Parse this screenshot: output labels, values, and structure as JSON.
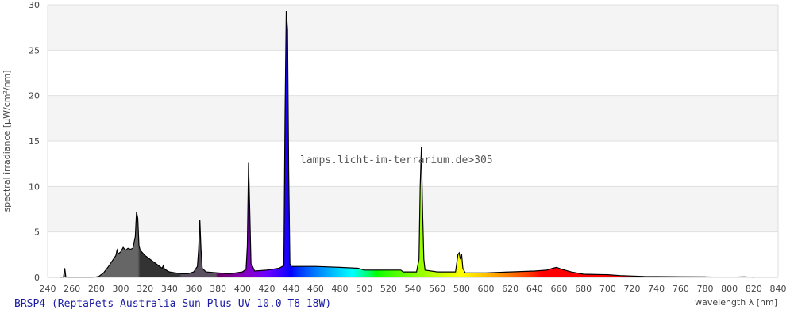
{
  "chart_data": {
    "type": "area",
    "title": "BRSP4 (ReptaPets Australia Sun Plus UV 10.0 T8 18W)",
    "watermark": "lamps.licht-im-terrarium.de>305",
    "xlabel": "wavelength λ [nm]",
    "ylabel": "spectral irradiance [µW/cm²/nm]",
    "xlim": [
      240,
      840
    ],
    "ylim": [
      0,
      30
    ],
    "xticks": [
      240,
      260,
      280,
      300,
      320,
      340,
      360,
      380,
      400,
      420,
      440,
      460,
      480,
      500,
      520,
      540,
      560,
      580,
      600,
      620,
      640,
      660,
      680,
      700,
      720,
      740,
      760,
      780,
      800,
      820,
      840
    ],
    "yticks": [
      0,
      5,
      10,
      15,
      20,
      25,
      30
    ],
    "grid": true,
    "band_colors": [
      "#f4f4f4",
      "#ffffff"
    ],
    "line_color": "#000000",
    "points": [
      [
        250,
        0
      ],
      [
        253,
        0
      ],
      [
        254,
        1.0
      ],
      [
        255,
        0
      ],
      [
        278,
        0
      ],
      [
        282,
        0.1
      ],
      [
        286,
        0.5
      ],
      [
        290,
        1.2
      ],
      [
        294,
        2.0
      ],
      [
        296,
        2.4
      ],
      [
        297,
        3.0
      ],
      [
        298,
        2.6
      ],
      [
        300,
        2.8
      ],
      [
        302,
        3.3
      ],
      [
        304,
        3.0
      ],
      [
        306,
        3.2
      ],
      [
        308,
        3.1
      ],
      [
        310,
        3.2
      ],
      [
        312,
        4.5
      ],
      [
        313,
        7.2
      ],
      [
        314,
        6.5
      ],
      [
        315,
        3.5
      ],
      [
        316,
        3.0
      ],
      [
        320,
        2.4
      ],
      [
        325,
        1.9
      ],
      [
        330,
        1.4
      ],
      [
        334,
        1.0
      ],
      [
        335,
        1.3
      ],
      [
        336,
        0.9
      ],
      [
        340,
        0.6
      ],
      [
        345,
        0.5
      ],
      [
        350,
        0.4
      ],
      [
        355,
        0.4
      ],
      [
        360,
        0.6
      ],
      [
        363,
        1.2
      ],
      [
        364,
        3.0
      ],
      [
        365,
        6.3
      ],
      [
        366,
        3.0
      ],
      [
        367,
        1.0
      ],
      [
        370,
        0.6
      ],
      [
        380,
        0.5
      ],
      [
        390,
        0.4
      ],
      [
        400,
        0.6
      ],
      [
        403,
        0.9
      ],
      [
        404,
        3.5
      ],
      [
        405,
        12.6
      ],
      [
        406,
        7.5
      ],
      [
        407,
        1.5
      ],
      [
        408,
        1.3
      ],
      [
        409,
        1.0
      ],
      [
        410,
        0.7
      ],
      [
        420,
        0.8
      ],
      [
        430,
        1.0
      ],
      [
        434,
        1.3
      ],
      [
        435,
        18
      ],
      [
        436,
        29.3
      ],
      [
        437,
        27.3
      ],
      [
        438,
        11.5
      ],
      [
        439,
        1.5
      ],
      [
        440,
        1.2
      ],
      [
        460,
        1.2
      ],
      [
        480,
        1.1
      ],
      [
        495,
        1.0
      ],
      [
        500,
        0.8
      ],
      [
        530,
        0.8
      ],
      [
        532,
        0.6
      ],
      [
        543,
        0.6
      ],
      [
        545,
        2.0
      ],
      [
        546,
        10
      ],
      [
        547,
        14.3
      ],
      [
        548,
        7
      ],
      [
        549,
        2
      ],
      [
        550,
        0.8
      ],
      [
        560,
        0.6
      ],
      [
        575,
        0.6
      ],
      [
        577,
        2.5
      ],
      [
        578,
        2.7
      ],
      [
        579,
        2.0
      ],
      [
        580,
        2.6
      ],
      [
        581,
        1.0
      ],
      [
        583,
        0.5
      ],
      [
        600,
        0.5
      ],
      [
        620,
        0.6
      ],
      [
        640,
        0.7
      ],
      [
        650,
        0.8
      ],
      [
        655,
        1.0
      ],
      [
        658,
        1.1
      ],
      [
        662,
        0.9
      ],
      [
        670,
        0.6
      ],
      [
        680,
        0.35
      ],
      [
        700,
        0.3
      ],
      [
        710,
        0.2
      ],
      [
        730,
        0.1
      ],
      [
        760,
        0.07
      ],
      [
        780,
        0.05
      ],
      [
        800,
        0.02
      ],
      [
        812,
        0.05
      ],
      [
        820,
        0
      ]
    ]
  }
}
